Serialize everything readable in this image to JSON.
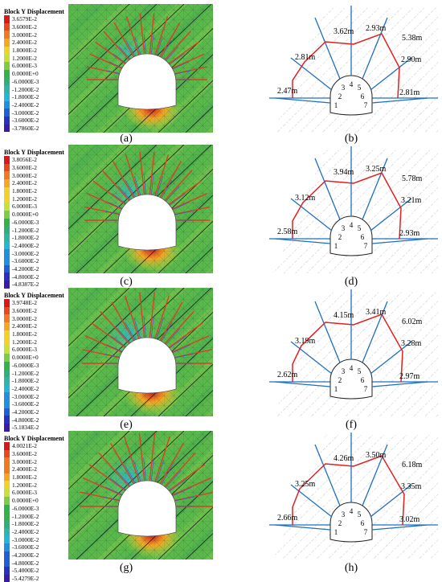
{
  "legend_title": "Block Y Displacement",
  "legend_colors": [
    "#d7191c",
    "#e7481d",
    "#f07a20",
    "#f5a623",
    "#f0d22b",
    "#c7e03a",
    "#7ccc44",
    "#33b24a",
    "#2fb07a",
    "#2fb5a8",
    "#22b7d6",
    "#1e90e0",
    "#1f5fd6",
    "#2b2fc0",
    "#3a1aa8"
  ],
  "panels": [
    {
      "left_caption": "(a)",
      "right_caption": "(b)",
      "legend": [
        "3.6579E-2",
        "3.6000E-2",
        "3.0000E-2",
        "2.4000E-2",
        "1.8000E-2",
        "1.2000E-2",
        "6.0000E-3",
        "0.0000E+0",
        "-6.0000E-3",
        "-1.2000E-2",
        "-1.8000E-2",
        "-2.4000E-2",
        "-3.0000E-2",
        "-3.6000E-2",
        "-3.7860E-2"
      ],
      "labels": [
        "3.62m",
        "2.93m",
        "5.38m",
        "2.81m",
        "2.90m",
        "2.47m",
        "2.81m"
      ]
    },
    {
      "left_caption": "(c)",
      "right_caption": "(d)",
      "legend": [
        "3.8056E-2",
        "3.6000E-2",
        "3.0000E-2",
        "2.4000E-2",
        "1.8000E-2",
        "1.2000E-2",
        "6.0000E-3",
        "0.0000E+0",
        "-6.0000E-3",
        "-1.2000E-2",
        "-1.8000E-2",
        "-2.4000E-2",
        "-3.0000E-2",
        "-3.6000E-2",
        "-4.2000E-2",
        "-4.8000E-2",
        "-4.8387E-2"
      ],
      "labels": [
        "3.94m",
        "3.25m",
        "5.78m",
        "3.12m",
        "3.21m",
        "2.58m",
        "2.93m"
      ]
    },
    {
      "left_caption": "(e)",
      "right_caption": "(f)",
      "legend": [
        "3.9748E-2",
        "3.6000E-2",
        "3.0000E-2",
        "2.4000E-2",
        "1.8000E-2",
        "1.2000E-2",
        "6.0000E-3",
        "0.0000E+0",
        "-6.0000E-3",
        "-1.2000E-2",
        "-1.8000E-2",
        "-2.4000E-2",
        "-3.0000E-2",
        "-3.6000E-2",
        "-4.2000E-2",
        "-4.8000E-2",
        "-5.1834E-2"
      ],
      "labels": [
        "4.15m",
        "3.41m",
        "6.02m",
        "3.19m",
        "3.28m",
        "2.62m",
        "2.97m"
      ]
    },
    {
      "left_caption": "(g)",
      "right_caption": "(h)",
      "legend": [
        "4.0021E-2",
        "3.6000E-2",
        "3.0000E-2",
        "2.4000E-2",
        "1.8000E-2",
        "1.2000E-2",
        "6.0000E-3",
        "0.0000E+0",
        "-6.0000E-3",
        "-1.2000E-2",
        "-1.8000E-2",
        "-2.4000E-2",
        "-3.0000E-2",
        "-3.6000E-2",
        "-4.2000E-2",
        "-4.8000E-2",
        "-5.4000E-2",
        "-5.4279E-2"
      ],
      "labels": [
        "4.26m",
        "3.50m",
        "6.18m",
        "3.25m",
        "3.35m",
        "2.66m",
        "3.02m"
      ]
    }
  ],
  "block_numbers": [
    "1",
    "2",
    "3",
    "4",
    "5",
    "6",
    "7"
  ]
}
